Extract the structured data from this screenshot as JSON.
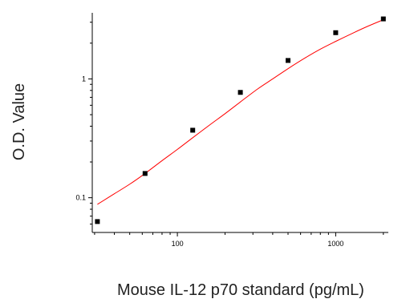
{
  "chart_data": {
    "type": "scatter",
    "title": "",
    "xlabel": "Mouse IL-12 p70 standard (pg/mL)",
    "ylabel": "O.D. Value",
    "x_scale": "log",
    "y_scale": "log",
    "xlim": [
      29,
      2150
    ],
    "ylim": [
      0.051,
      3.6
    ],
    "x_ticks": [
      {
        "value": 100,
        "label": "100"
      },
      {
        "value": 1000,
        "label": "1000"
      }
    ],
    "y_ticks": [
      {
        "value": 0.1,
        "label": "0.1"
      },
      {
        "value": 1,
        "label": "1"
      }
    ],
    "grid": false,
    "legend": "none",
    "series": [
      {
        "kind": "points",
        "marker": "square",
        "color": "#000000",
        "x": [
          31.25,
          62.5,
          125,
          250,
          500,
          1000,
          2000
        ],
        "y": [
          0.063,
          0.16,
          0.37,
          0.77,
          1.43,
          2.45,
          3.2
        ]
      },
      {
        "kind": "fit-curve",
        "color": "#ff0000",
        "x": [
          31.25,
          40,
          50,
          62.5,
          80,
          100,
          125,
          160,
          200,
          250,
          320,
          400,
          500,
          640,
          800,
          1000,
          1300,
          1600,
          2000
        ],
        "y": [
          0.088,
          0.108,
          0.13,
          0.16,
          0.205,
          0.255,
          0.32,
          0.41,
          0.51,
          0.64,
          0.82,
          1.0,
          1.22,
          1.5,
          1.78,
          2.07,
          2.45,
          2.78,
          3.15
        ]
      }
    ]
  }
}
